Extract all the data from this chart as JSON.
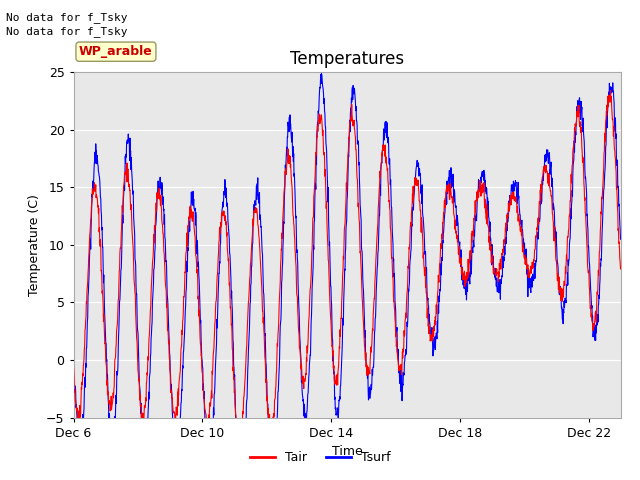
{
  "title": "Temperatures",
  "xlabel": "Time",
  "ylabel": "Temperature (C)",
  "ylim": [
    -5,
    25
  ],
  "x_tick_labels": [
    "Dec 6",
    "Dec 10",
    "Dec 14",
    "Dec 18",
    "Dec 22"
  ],
  "x_ticks_pos": [
    0,
    4,
    8,
    12,
    16
  ],
  "y_ticks": [
    -5,
    0,
    5,
    10,
    15,
    20,
    25
  ],
  "bg_color": "#e8e8e8",
  "line_color_tair": "red",
  "line_color_tsurf": "blue",
  "line_width": 0.8,
  "wp_label": "WP_arable",
  "wp_label_color": "#cc0000",
  "wp_box_facecolor": "#ffffcc",
  "wp_box_edgecolor": "#999966",
  "no_data_text1": "No data for f_Tsky",
  "no_data_text2": "No data for f_Tsky",
  "legend_labels": [
    "Tair",
    "Tsurf"
  ],
  "title_fontsize": 12,
  "axis_label_fontsize": 9,
  "tick_fontsize": 9,
  "total_days": 17,
  "pts_per_day": 96
}
